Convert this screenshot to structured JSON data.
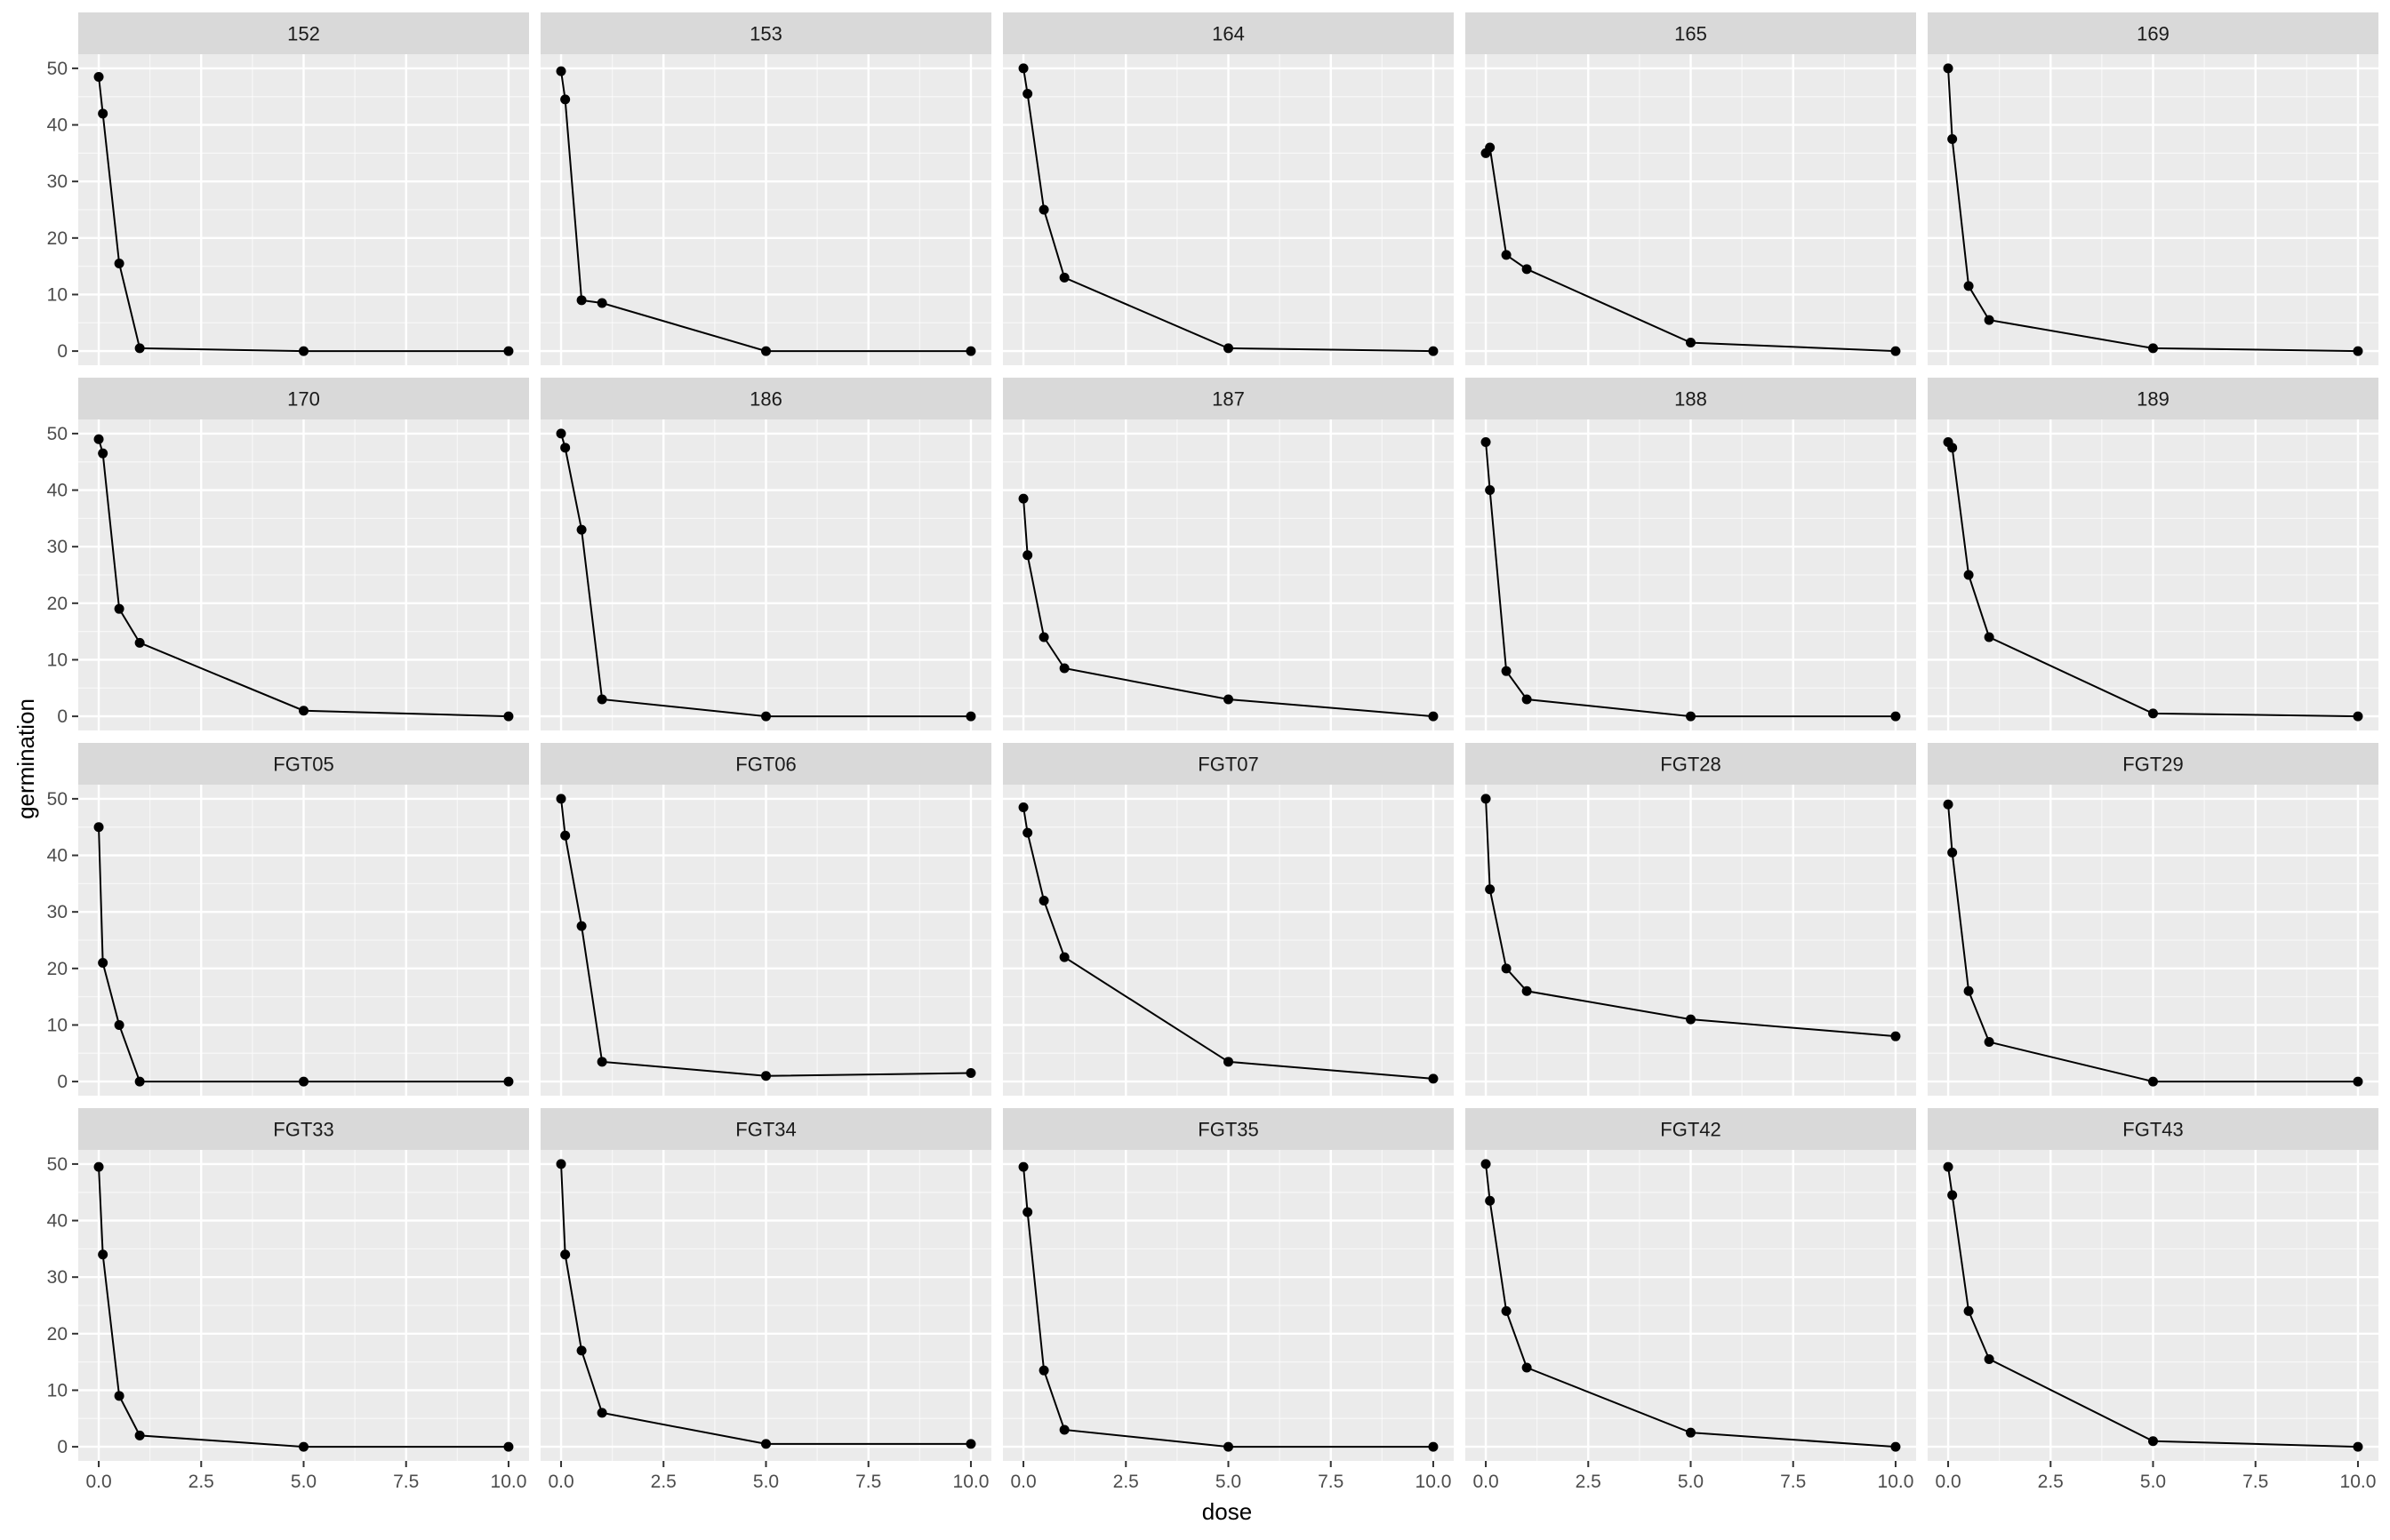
{
  "chart_data": {
    "type": "line",
    "facet_layout": {
      "columns": 5,
      "rows": 4
    },
    "xlabel": "dose",
    "ylabel": "germination",
    "xlim": [
      -0.5,
      10.5
    ],
    "ylim": [
      -2.5,
      52.5
    ],
    "x_ticks": [
      0,
      2.5,
      5,
      7.5,
      10
    ],
    "x_tick_labels": [
      "0.0",
      "2.5",
      "5.0",
      "7.5",
      "10.0"
    ],
    "y_ticks": [
      0,
      10,
      20,
      30,
      40,
      50
    ],
    "y_tick_labels": [
      "0",
      "10",
      "20",
      "30",
      "40",
      "50"
    ],
    "grid": true,
    "x": [
      0,
      0.1,
      0.5,
      1,
      5,
      10
    ],
    "panels": [
      {
        "label": "152",
        "values": [
          48.5,
          42,
          15.5,
          0.5,
          0,
          0
        ]
      },
      {
        "label": "153",
        "values": [
          49.5,
          44.5,
          9,
          8.5,
          0,
          0
        ]
      },
      {
        "label": "164",
        "values": [
          50,
          45.5,
          25,
          13,
          0.5,
          0
        ]
      },
      {
        "label": "165",
        "values": [
          35,
          36,
          17,
          14.5,
          1.5,
          0
        ]
      },
      {
        "label": "169",
        "values": [
          50,
          37.5,
          11.5,
          5.5,
          0.5,
          0
        ]
      },
      {
        "label": "170",
        "values": [
          49,
          46.5,
          19,
          13,
          1,
          0
        ]
      },
      {
        "label": "186",
        "values": [
          50,
          47.5,
          33,
          3,
          0,
          0
        ]
      },
      {
        "label": "187",
        "values": [
          38.5,
          28.5,
          14,
          8.5,
          3,
          0
        ]
      },
      {
        "label": "188",
        "values": [
          48.5,
          40,
          8,
          3,
          0,
          0
        ]
      },
      {
        "label": "189",
        "values": [
          48.5,
          47.5,
          25,
          14,
          0.5,
          0
        ]
      },
      {
        "label": "FGT05",
        "values": [
          45,
          21,
          10,
          0,
          0,
          0
        ]
      },
      {
        "label": "FGT06",
        "values": [
          50,
          43.5,
          27.5,
          3.5,
          1,
          1.5
        ]
      },
      {
        "label": "FGT07",
        "values": [
          48.5,
          44,
          32,
          22,
          3.5,
          0.5
        ]
      },
      {
        "label": "FGT28",
        "values": [
          50,
          34,
          20,
          16,
          11,
          8
        ]
      },
      {
        "label": "FGT29",
        "values": [
          49,
          40.5,
          16,
          7,
          0,
          0
        ]
      },
      {
        "label": "FGT33",
        "values": [
          49.5,
          34,
          9,
          2,
          0,
          0
        ]
      },
      {
        "label": "FGT34",
        "values": [
          50,
          34,
          17,
          6,
          0.5,
          0.5
        ]
      },
      {
        "label": "FGT35",
        "values": [
          49.5,
          41.5,
          13.5,
          3,
          0,
          0
        ]
      },
      {
        "label": "FGT42",
        "values": [
          50,
          43.5,
          24,
          14,
          2.5,
          0
        ]
      },
      {
        "label": "FGT43",
        "values": [
          49.5,
          44.5,
          24,
          15.5,
          1,
          0
        ]
      }
    ]
  },
  "colors": {
    "panel_background": "#ebebeb",
    "strip_background": "#d9d9d9",
    "grid_major": "#ffffff",
    "line": "#000000",
    "point": "#000000",
    "tick_text": "#4d4d4d",
    "title_text": "#000000"
  }
}
